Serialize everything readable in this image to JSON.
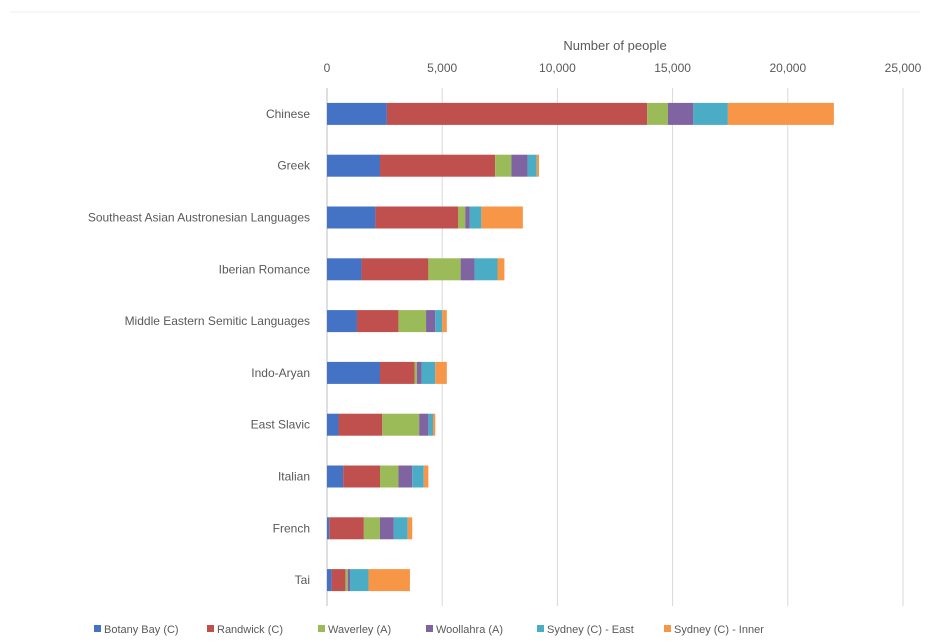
{
  "chart_data": {
    "type": "bar",
    "orientation": "horizontal",
    "stacked": true,
    "title": "",
    "xlabel": "Number of people",
    "ylabel": "",
    "xlim": [
      0,
      25000
    ],
    "xticks": [
      {
        "value": 0,
        "label": "0"
      },
      {
        "value": 5000,
        "label": "5,000"
      },
      {
        "value": 10000,
        "label": "10,000"
      },
      {
        "value": 15000,
        "label": "15,000"
      },
      {
        "value": 20000,
        "label": "20,000"
      },
      {
        "value": 25000,
        "label": "25,000"
      }
    ],
    "x_axis_position": "top",
    "grid": true,
    "legend_position": "bottom",
    "categories": [
      "Chinese",
      "Greek",
      "Southeast Asian Austronesian Languages",
      "Iberian Romance",
      "Middle Eastern Semitic Languages",
      "Indo-Aryan",
      "East Slavic",
      "Italian",
      "French",
      "Tai"
    ],
    "series": [
      {
        "name": "Botany Bay (C)",
        "color": "#4472C4",
        "values": [
          2600,
          2300,
          2100,
          1500,
          1300,
          2300,
          500,
          700,
          100,
          200
        ]
      },
      {
        "name": "Randwick (C)",
        "color": "#C0504D",
        "values": [
          11300,
          5000,
          3600,
          2900,
          1800,
          1500,
          1900,
          1600,
          1500,
          600
        ]
      },
      {
        "name": "Waverley (A)",
        "color": "#9BBB59",
        "values": [
          900,
          700,
          300,
          1400,
          1200,
          100,
          1600,
          800,
          700,
          100
        ]
      },
      {
        "name": "Woollahra (A)",
        "color": "#8064A2",
        "values": [
          1100,
          700,
          200,
          600,
          400,
          200,
          400,
          600,
          600,
          100
        ]
      },
      {
        "name": "Sydney (C) - East",
        "color": "#4BACC6",
        "values": [
          1500,
          400,
          500,
          1000,
          300,
          600,
          200,
          500,
          600,
          800
        ]
      },
      {
        "name": "Sydney (C) - Inner",
        "color": "#F79646",
        "values": [
          4600,
          100,
          1800,
          300,
          200,
          500,
          100,
          200,
          200,
          1800
        ]
      }
    ]
  }
}
